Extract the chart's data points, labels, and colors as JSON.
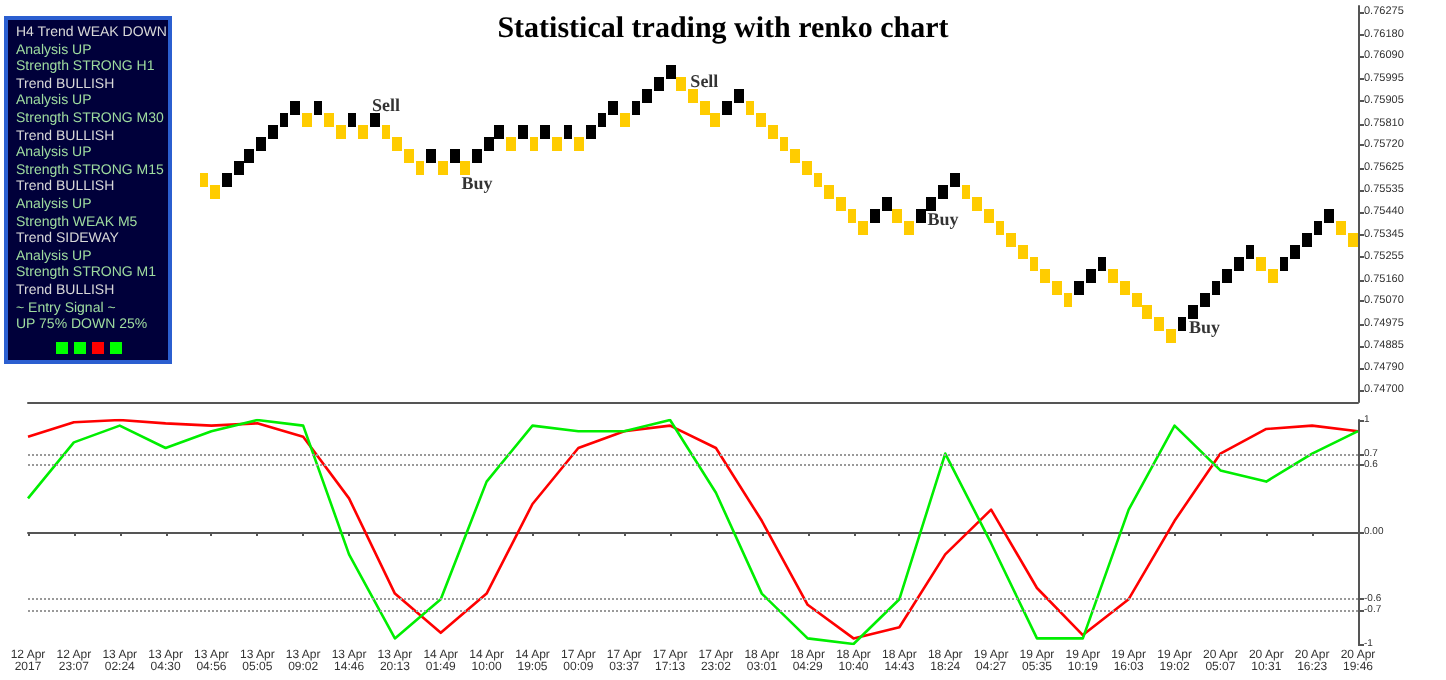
{
  "chart_data": [
    {
      "type": "candlestick",
      "title": "Statistical trading with renko chart",
      "tick_labels": "y",
      "categories": [
        null,
        null,
        null,
        null,
        null,
        null,
        null,
        null,
        null,
        null,
        null,
        null,
        null,
        null,
        null,
        null,
        null,
        null,
        null,
        null,
        null,
        null,
        null,
        null,
        null,
        null,
        null,
        null,
        null,
        null,
        null,
        null,
        null,
        null,
        null,
        null,
        null,
        null,
        null,
        null,
        null,
        null,
        null,
        null,
        null,
        null,
        null,
        null,
        null,
        null,
        null,
        null,
        null,
        null,
        null,
        null,
        null,
        null,
        null,
        null,
        null,
        null,
        null,
        null,
        null,
        null,
        null,
        null,
        null,
        null,
        null,
        null,
        null,
        null,
        null,
        null,
        null,
        null,
        null,
        null,
        null,
        null,
        null,
        null,
        null,
        null,
        null,
        null,
        null,
        null,
        null,
        null,
        null,
        null,
        null,
        null,
        null,
        null,
        null,
        null,
        null,
        null,
        null,
        null,
        null,
        null,
        null,
        null,
        null,
        null,
        null,
        null,
        null,
        null,
        null,
        null,
        null
      ],
      "ohlc": [
        null,
        null,
        null,
        null,
        null,
        null,
        null,
        null,
        null,
        null,
        null,
        null,
        null,
        null,
        null,
        [
          0.756,
          0.756,
          0.7555,
          0.7555
        ],
        [
          0.7555,
          0.7555,
          0.755,
          0.755
        ],
        [
          0.7555,
          0.756,
          0.7555,
          0.756
        ],
        [
          0.756,
          0.7565,
          0.756,
          0.7565
        ],
        [
          0.7565,
          0.757,
          0.7565,
          0.757
        ],
        [
          0.757,
          0.7575,
          0.757,
          0.7575
        ],
        [
          0.7575,
          0.758,
          0.7575,
          0.758
        ],
        [
          0.758,
          0.7585,
          0.758,
          0.7585
        ],
        [
          0.7585,
          0.759,
          0.7585,
          0.759
        ],
        [
          0.7585,
          0.7585,
          0.758,
          0.758
        ],
        [
          0.7585,
          0.759,
          0.7585,
          0.759
        ],
        [
          0.7585,
          0.7585,
          0.758,
          0.758
        ],
        [
          0.758,
          0.758,
          0.7575,
          0.7575
        ],
        [
          0.758,
          0.7585,
          0.758,
          0.7585
        ],
        [
          0.758,
          0.758,
          0.7575,
          0.7575
        ],
        [
          0.758,
          0.7585,
          0.758,
          0.7585
        ],
        [
          0.758,
          0.758,
          0.7575,
          0.7575
        ],
        [
          0.7575,
          0.7575,
          0.757,
          0.757
        ],
        [
          0.757,
          0.757,
          0.7565,
          0.7565
        ],
        [
          0.7565,
          0.7565,
          0.756,
          0.756
        ],
        [
          0.7565,
          0.757,
          0.7565,
          0.757
        ],
        [
          0.7565,
          0.7565,
          0.756,
          0.756
        ],
        [
          0.7565,
          0.757,
          0.7565,
          0.757
        ],
        [
          0.7565,
          0.7565,
          0.756,
          0.756
        ],
        [
          0.7565,
          0.757,
          0.7565,
          0.757
        ],
        [
          0.757,
          0.7575,
          0.757,
          0.7575
        ],
        [
          0.7575,
          0.758,
          0.7575,
          0.758
        ],
        [
          0.7575,
          0.7575,
          0.757,
          0.757
        ],
        [
          0.7575,
          0.758,
          0.7575,
          0.758
        ],
        [
          0.7575,
          0.7575,
          0.757,
          0.757
        ],
        [
          0.7575,
          0.758,
          0.7575,
          0.758
        ],
        [
          0.7575,
          0.7575,
          0.757,
          0.757
        ],
        [
          0.7575,
          0.758,
          0.7575,
          0.758
        ],
        [
          0.7575,
          0.7575,
          0.757,
          0.757
        ],
        [
          0.7575,
          0.758,
          0.7575,
          0.758
        ],
        [
          0.758,
          0.7585,
          0.758,
          0.7585
        ],
        [
          0.7585,
          0.759,
          0.7585,
          0.759
        ],
        [
          0.7585,
          0.7585,
          0.758,
          0.758
        ],
        [
          0.7585,
          0.759,
          0.7585,
          0.759
        ],
        [
          0.759,
          0.7595,
          0.759,
          0.7595
        ],
        [
          0.7595,
          0.76,
          0.7595,
          0.76
        ],
        [
          0.76,
          0.7605,
          0.76,
          0.7605
        ],
        [
          0.76,
          0.76,
          0.7595,
          0.7595
        ],
        [
          0.7595,
          0.7595,
          0.759,
          0.759
        ],
        [
          0.759,
          0.759,
          0.7585,
          0.7585
        ],
        [
          0.7585,
          0.7585,
          0.758,
          0.758
        ],
        [
          0.7585,
          0.759,
          0.7585,
          0.759
        ],
        [
          0.759,
          0.7595,
          0.759,
          0.7595
        ],
        [
          0.759,
          0.759,
          0.7585,
          0.7585
        ],
        [
          0.7585,
          0.7585,
          0.758,
          0.758
        ],
        [
          0.758,
          0.758,
          0.7575,
          0.7575
        ],
        [
          0.7575,
          0.7575,
          0.757,
          0.757
        ],
        [
          0.757,
          0.757,
          0.7565,
          0.7565
        ],
        [
          0.7565,
          0.7565,
          0.756,
          0.756
        ],
        [
          0.756,
          0.756,
          0.7555,
          0.7555
        ],
        [
          0.7555,
          0.7555,
          0.755,
          0.755
        ],
        [
          0.755,
          0.755,
          0.7545,
          0.7545
        ],
        [
          0.7545,
          0.7545,
          0.754,
          0.754
        ],
        [
          0.754,
          0.754,
          0.7535,
          0.7535
        ],
        [
          0.754,
          0.7545,
          0.754,
          0.7545
        ],
        [
          0.7545,
          0.755,
          0.7545,
          0.755
        ],
        [
          0.7545,
          0.7545,
          0.754,
          0.754
        ],
        [
          0.754,
          0.754,
          0.7535,
          0.7535
        ],
        [
          0.754,
          0.7545,
          0.754,
          0.7545
        ],
        [
          0.7545,
          0.755,
          0.7545,
          0.755
        ],
        [
          0.755,
          0.7555,
          0.755,
          0.7555
        ],
        [
          0.7555,
          0.756,
          0.7555,
          0.756
        ],
        [
          0.7555,
          0.7555,
          0.755,
          0.755
        ],
        [
          0.755,
          0.755,
          0.7545,
          0.7545
        ],
        [
          0.7545,
          0.7545,
          0.754,
          0.754
        ],
        [
          0.754,
          0.754,
          0.7535,
          0.7535
        ],
        [
          0.7535,
          0.7535,
          0.753,
          0.753
        ],
        [
          0.753,
          0.753,
          0.7525,
          0.7525
        ],
        [
          0.7525,
          0.7525,
          0.752,
          0.752
        ],
        [
          0.752,
          0.752,
          0.7515,
          0.7515
        ],
        [
          0.7515,
          0.7515,
          0.751,
          0.751
        ],
        [
          0.751,
          0.751,
          0.7505,
          0.7505
        ],
        [
          0.751,
          0.7515,
          0.751,
          0.7515
        ],
        [
          0.7515,
          0.752,
          0.7515,
          0.752
        ],
        [
          0.752,
          0.7525,
          0.752,
          0.7525
        ],
        [
          0.752,
          0.752,
          0.7515,
          0.7515
        ],
        [
          0.7515,
          0.7515,
          0.751,
          0.751
        ],
        [
          0.751,
          0.751,
          0.7505,
          0.7505
        ],
        [
          0.7505,
          0.7505,
          0.75,
          0.75
        ],
        [
          0.75,
          0.75,
          0.7495,
          0.7495
        ],
        [
          0.7495,
          0.7495,
          0.749,
          0.749
        ],
        [
          0.7495,
          0.75,
          0.7495,
          0.75
        ],
        [
          0.75,
          0.7505,
          0.75,
          0.7505
        ],
        [
          0.7505,
          0.751,
          0.7505,
          0.751
        ],
        [
          0.751,
          0.7515,
          0.751,
          0.7515
        ],
        [
          0.7515,
          0.752,
          0.7515,
          0.752
        ],
        [
          0.752,
          0.7525,
          0.752,
          0.7525
        ],
        [
          0.7525,
          0.753,
          0.7525,
          0.753
        ],
        [
          0.7525,
          0.7525,
          0.752,
          0.752
        ],
        [
          0.752,
          0.752,
          0.7515,
          0.7515
        ],
        [
          0.752,
          0.7525,
          0.752,
          0.7525
        ],
        [
          0.7525,
          0.753,
          0.7525,
          0.753
        ],
        [
          0.753,
          0.7535,
          0.753,
          0.7535
        ],
        [
          0.7535,
          0.754,
          0.7535,
          0.754
        ],
        [
          0.754,
          0.7545,
          0.754,
          0.7545
        ],
        [
          0.754,
          0.754,
          0.7535,
          0.7535
        ],
        [
          0.7535,
          0.7535,
          0.753,
          0.753
        ]
      ],
      "colors": [
        null,
        null,
        null,
        null,
        null,
        null,
        null,
        null,
        null,
        null,
        null,
        null,
        null,
        null,
        null,
        "#ffcc00",
        "#ffcc00",
        "#000000",
        "#000000",
        "#000000",
        "#000000",
        "#000000",
        "#000000",
        "#000000",
        "#ffcc00",
        "#000000",
        "#ffcc00",
        "#ffcc00",
        "#000000",
        "#ffcc00",
        "#000000",
        "#ffcc00",
        "#ffcc00",
        "#ffcc00",
        "#ffcc00",
        "#000000",
        "#ffcc00",
        "#000000",
        "#ffcc00",
        "#000000",
        "#000000",
        "#000000",
        "#ffcc00",
        "#000000",
        "#ffcc00",
        "#000000",
        "#ffcc00",
        "#000000",
        "#ffcc00",
        "#000000",
        "#000000",
        "#000000",
        "#ffcc00",
        "#000000",
        "#000000",
        "#000000",
        "#000000",
        "#ffcc00",
        "#ffcc00",
        "#ffcc00",
        "#ffcc00",
        "#000000",
        "#000000",
        "#ffcc00",
        "#ffcc00",
        "#ffcc00",
        "#ffcc00",
        "#ffcc00",
        "#ffcc00",
        "#ffcc00",
        "#ffcc00",
        "#ffcc00",
        "#ffcc00",
        "#ffcc00",
        "#000000",
        "#000000",
        "#ffcc00",
        "#ffcc00",
        "#000000",
        "#000000",
        "#000000",
        "#000000",
        "#ffcc00",
        "#ffcc00",
        "#ffcc00",
        "#ffcc00",
        "#ffcc00",
        "#ffcc00",
        "#ffcc00",
        "#ffcc00",
        "#ffcc00",
        "#ffcc00",
        "#000000",
        "#000000",
        "#000000",
        "#ffcc00",
        "#ffcc00",
        "#ffcc00",
        "#ffcc00",
        "#ffcc00",
        "#ffcc00",
        "#000000",
        "#000000",
        "#000000",
        "#000000",
        "#000000",
        "#000000",
        "#000000",
        "#ffcc00",
        "#ffcc00",
        "#000000",
        "#000000",
        "#000000",
        "#000000",
        "#000000",
        "#ffcc00",
        "#ffcc00"
      ],
      "value_labels": [
        null,
        null,
        null,
        null,
        null,
        null,
        null,
        null,
        null,
        null,
        null,
        null,
        null,
        null,
        null,
        null,
        null,
        null,
        null,
        null,
        null,
        null,
        null,
        null,
        null,
        null,
        null,
        null,
        null,
        null,
        null,
        "Sell",
        null,
        null,
        null,
        null,
        null,
        null,
        null,
        "Buy",
        null,
        null,
        null,
        null,
        null,
        null,
        null,
        null,
        null,
        null,
        null,
        null,
        null,
        null,
        null,
        null,
        null,
        null,
        null,
        "Sell",
        null,
        null,
        null,
        null,
        null,
        null,
        null,
        null,
        null,
        null,
        null,
        null,
        null,
        null,
        null,
        null,
        null,
        null,
        null,
        null,
        "Buy",
        null,
        null,
        null,
        null,
        null,
        null,
        null,
        null,
        null,
        null,
        null,
        null,
        null,
        null,
        null,
        null,
        null,
        null,
        null,
        null,
        null,
        null,
        "Buy",
        null,
        null,
        null,
        null,
        null,
        null,
        null,
        null,
        null,
        null,
        null,
        null,
        null
      ],
      "ylim": [
        0.7465,
        0.763
      ],
      "yticks": [
        0.76275,
        {
          "value": 0.7618,
          "label": "0.76180"
        },
        {
          "value": 0.7609,
          "label": "0.76090"
        },
        0.75995,
        0.75905,
        {
          "value": 0.7581,
          "label": "0.75810"
        },
        {
          "value": 0.7572,
          "label": "0.75720"
        },
        0.75625,
        0.75535,
        {
          "value": 0.7544,
          "label": "0.75440"
        },
        0.75345,
        0.75255,
        {
          "value": 0.7516,
          "label": "0.75160"
        },
        {
          "value": 0.7507,
          "label": "0.75070"
        },
        0.74975,
        0.74885,
        {
          "value": 0.7479,
          "label": "0.74790"
        },
        {
          "value": 0.747,
          "label": "0.74700"
        }
      ]
    },
    {
      "type": "line",
      "marker": "none",
      "categories": [
        "12 Apr 2017",
        "12 Apr 23:07",
        "13 Apr 02:24",
        "13 Apr 04:30",
        "13 Apr 04:56",
        "13 Apr 05:05",
        "13 Apr 09:02",
        "13 Apr 14:46",
        "13 Apr 20:13",
        "14 Apr 01:49",
        "14 Apr 10:00",
        "14 Apr 19:05",
        "17 Apr 00:09",
        "17 Apr 03:37",
        "17 Apr 17:13",
        "17 Apr 23:02",
        "18 Apr 03:01",
        "18 Apr 04:29",
        "18 Apr 10:40",
        "18 Apr 14:43",
        "18 Apr 18:24",
        "19 Apr 04:27",
        "19 Apr 05:35",
        "19 Apr 10:19",
        "19 Apr 16:03",
        "19 Apr 19:02",
        "20 Apr 05:07",
        "20 Apr 10:31",
        "20 Apr 16:23",
        "20 Apr 19:46"
      ],
      "series": [
        {
          "color": "#ff0000",
          "values": [
            0.85,
            0.98,
            1.0,
            0.97,
            0.95,
            0.97,
            0.85,
            0.3,
            -0.55,
            -0.9,
            -0.55,
            0.25,
            0.75,
            0.9,
            0.95,
            0.75,
            0.1,
            -0.65,
            -0.95,
            -0.85,
            -0.2,
            0.2,
            -0.5,
            -0.92,
            -0.6,
            0.1,
            0.7,
            0.92,
            0.95,
            0.9
          ]
        },
        {
          "color": "#00ee00",
          "values": [
            0.3,
            0.8,
            0.95,
            0.75,
            0.9,
            1.0,
            0.95,
            -0.2,
            -0.95,
            -0.6,
            0.45,
            0.95,
            0.9,
            0.9,
            1.0,
            0.35,
            -0.55,
            -0.95,
            -1.0,
            -0.6,
            0.7,
            -0.1,
            -0.95,
            -0.95,
            0.2,
            0.95,
            0.55,
            0.45,
            0.7,
            0.9
          ]
        }
      ],
      "ylim": [
        -1,
        1
      ],
      "yticks": [
        1,
        0.7,
        0.6,
        {
          "value": 0,
          "label": "0.00"
        },
        -0.6,
        -0.7,
        -1
      ],
      "ref_lines": [
        {
          "axis": "y",
          "value": 0.7,
          "color": "#999999",
          "line_style": "dotted"
        },
        {
          "axis": "y",
          "value": 0.6,
          "color": "#999999",
          "line_style": "dotted"
        },
        {
          "axis": "y",
          "value": -0.6,
          "color": "#999999",
          "line_style": "dotted"
        },
        {
          "axis": "y",
          "value": -0.7,
          "color": "#999999",
          "line_style": "dotted"
        }
      ]
    },
    {
      "type": "other",
      "annotations": [
        "H4 Trend WEAK DOWN",
        "Analysis UP",
        "Strength STRONG H1",
        "Trend BULLISH",
        "Analysis UP",
        "Strength STRONG M30",
        "Trend BULLISH",
        "Analysis UP",
        "Strength STRONG M15",
        "Trend BULLISH",
        "Analysis UP",
        "Strength WEAK M5",
        "Trend SIDEWAY",
        "Analysis UP",
        "Strength STRONG M1",
        "Trend BULLISH",
        "~ Entry Signal ~",
        "UP 75%  DOWN 25%"
      ],
      "colors": [
        "#00ff00",
        "#00ff00",
        "#ff0000",
        "#00ff00"
      ]
    }
  ]
}
